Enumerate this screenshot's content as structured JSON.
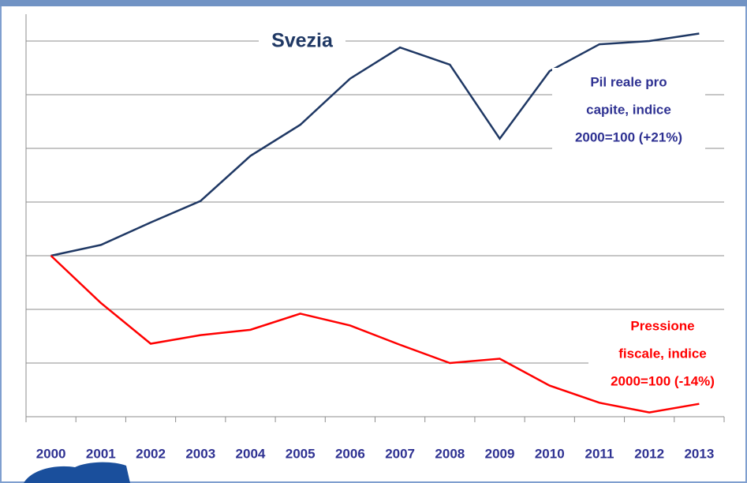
{
  "chart_data": {
    "type": "line",
    "title": "Svezia",
    "categories": [
      "2000",
      "2001",
      "2002",
      "2003",
      "2004",
      "2005",
      "2006",
      "2007",
      "2008",
      "2009",
      "2010",
      "2011",
      "2012",
      "2013"
    ],
    "series": [
      {
        "name": [
          "Pil reale pro",
          "capite, indice",
          "2000=100 (+21%)"
        ],
        "color": "#1f3864",
        "label_color": "#2e3192",
        "values": [
          100,
          101,
          103.1,
          105.1,
          109.3,
          112.2,
          116.5,
          119.4,
          117.8,
          110.9,
          117.2,
          119.7,
          120,
          120.7
        ]
      },
      {
        "name": [
          "Pressione",
          "fiscale, indice",
          "2000=100 (-14%)"
        ],
        "color": "#ff0000",
        "label_color": "#ff0000",
        "values": [
          100,
          95.6,
          91.8,
          92.6,
          93.1,
          94.6,
          93.5,
          91.7,
          90,
          90.4,
          87.9,
          86.3,
          85.4,
          86.2
        ]
      }
    ],
    "ylim": [
      85,
      122.5
    ],
    "yticks": [
      85,
      90,
      95,
      100,
      105,
      110,
      115,
      120
    ],
    "grid": true
  }
}
